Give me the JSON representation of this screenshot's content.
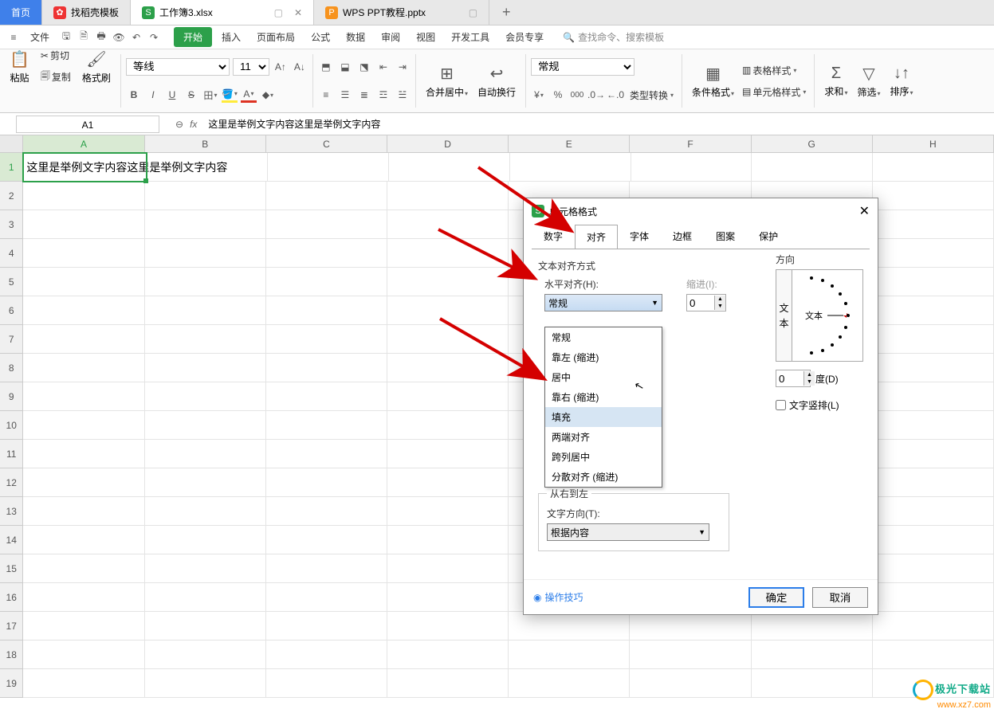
{
  "tabs": {
    "home": "首页",
    "t1": {
      "label": "找稻壳模板",
      "icon_bg": "#e33",
      "icon_text": "✿"
    },
    "t2": {
      "label": "工作簿3.xlsx",
      "icon_bg": "#2ca04a",
      "icon_text": "S"
    },
    "t3": {
      "label": "WPS PPT教程.pptx",
      "icon_bg": "#f7931e",
      "icon_text": "P"
    }
  },
  "menu": {
    "file": "文件",
    "items": [
      "开始",
      "插入",
      "页面布局",
      "公式",
      "数据",
      "审阅",
      "视图",
      "开发工具",
      "会员专享"
    ],
    "active": "开始",
    "search_placeholder": "查找命令、搜索模板"
  },
  "toolbar": {
    "paste": "粘贴",
    "cut": "剪切",
    "copy": "复制",
    "format_painter": "格式刷",
    "font_name": "等线",
    "font_size": "11",
    "merge": "合并居中",
    "wrap": "自动换行",
    "num_format": "常规",
    "type_convert": "类型转换",
    "cond_fmt": "条件格式",
    "table_style": "表格样式",
    "cell_style": "单元格样式",
    "sum": "求和",
    "filter": "筛选",
    "sort": "排序"
  },
  "formula_bar": {
    "name_box": "A1",
    "value": "这里是举例文字内容这里是举例文字内容"
  },
  "grid": {
    "columns": [
      "A",
      "B",
      "C",
      "D",
      "E",
      "F",
      "G",
      "H"
    ],
    "rows": 19,
    "a1": "这里是举例文字内容这里是举例文字内容"
  },
  "dialog": {
    "title": "单元格格式",
    "tabs": [
      "数字",
      "对齐",
      "字体",
      "边框",
      "图案",
      "保护"
    ],
    "active_tab": "对齐",
    "section_align": "文本对齐方式",
    "h_label": "水平对齐(H):",
    "h_value": "常规",
    "indent_label": "缩进(I):",
    "indent_value": "0",
    "v_label_char": "文",
    "options": [
      "常规",
      "靠左 (缩进)",
      "居中",
      "靠右 (缩进)",
      "填充",
      "两端对齐",
      "跨列居中",
      "分散对齐 (缩进)"
    ],
    "hover_option": "填充",
    "rtl_section": "从右到左",
    "text_dir_label": "文字方向(T):",
    "text_dir_value": "根据内容",
    "direction_label": "方向",
    "dir_text": "文本",
    "degree_value": "0",
    "degree_label": "度(D)",
    "vertical_label": "文字竖排(L)",
    "tips": "操作技巧",
    "ok": "确定",
    "cancel": "取消",
    "side_text1": "文",
    "side_text2": "本"
  },
  "watermark": {
    "line1": "极光下载站",
    "line2": "www.xz7.com"
  },
  "colors": {
    "primary_blue": "#3f80ea",
    "wps_green": "#2ca04a",
    "arrow_red": "#d40000"
  }
}
